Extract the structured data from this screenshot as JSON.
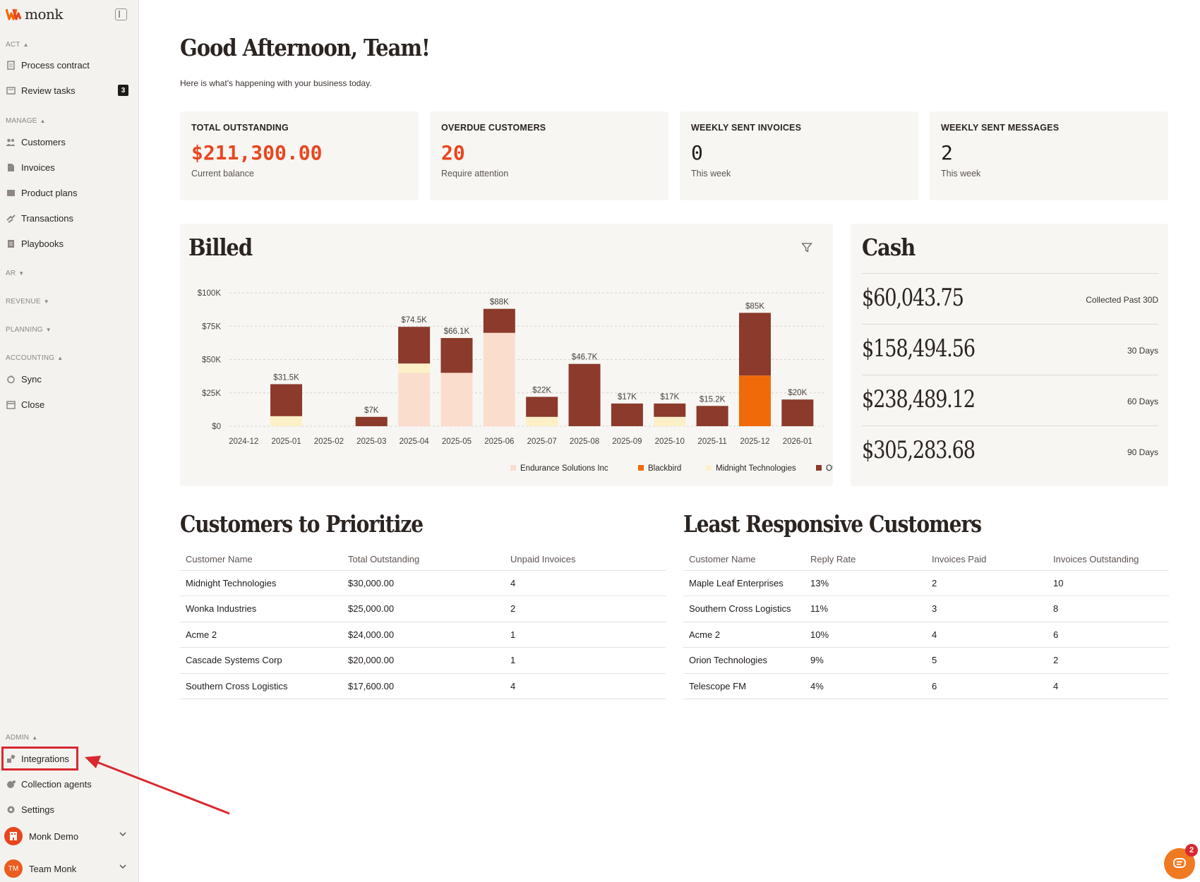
{
  "app": {
    "name": "monk"
  },
  "sidebar": {
    "act_label": "ACT",
    "act_items": [
      {
        "label": "Process contract",
        "icon": "contract-icon"
      },
      {
        "label": "Review tasks",
        "icon": "tasks-icon",
        "badge": "3"
      }
    ],
    "manage_label": "MANAGE",
    "manage_items": [
      {
        "label": "Customers",
        "icon": "users-icon"
      },
      {
        "label": "Invoices",
        "icon": "invoice-icon"
      },
      {
        "label": "Product plans",
        "icon": "plans-icon"
      },
      {
        "label": "Transactions",
        "icon": "transactions-icon"
      },
      {
        "label": "Playbooks",
        "icon": "playbooks-icon"
      }
    ],
    "ar_label": "AR",
    "revenue_label": "REVENUE",
    "planning_label": "PLANNING",
    "accounting_label": "ACCOUNTING",
    "accounting_items": [
      {
        "label": "Sync",
        "icon": "sync-icon"
      },
      {
        "label": "Close",
        "icon": "calendar-icon"
      }
    ],
    "admin_label": "ADMIN",
    "admin_items": [
      {
        "label": "Integrations",
        "icon": "integrations-icon"
      },
      {
        "label": "Collection agents",
        "icon": "agents-icon"
      },
      {
        "label": "Settings",
        "icon": "gear-icon"
      }
    ],
    "org": {
      "name": "Monk Demo"
    },
    "user": {
      "name": "Team Monk",
      "initials": "TM"
    }
  },
  "header": {
    "greeting": "Good Afternoon, Team!",
    "subtitle": "Here is what's happening with your business today."
  },
  "kpis": [
    {
      "title": "TOTAL OUTSTANDING",
      "value": "$211,300.00",
      "sub": "Current balance",
      "accent": "#e8461f"
    },
    {
      "title": "OVERDUE CUSTOMERS",
      "value": "20",
      "sub": "Require attention",
      "accent": "#e8461f"
    },
    {
      "title": "WEEKLY SENT INVOICES",
      "value": "0",
      "sub": "This week"
    },
    {
      "title": "WEEKLY SENT MESSAGES",
      "value": "2",
      "sub": "This week"
    }
  ],
  "billed": {
    "title": "Billed"
  },
  "chart_data": {
    "type": "bar",
    "stacked": true,
    "categories": [
      "2024-12",
      "2025-01",
      "2025-02",
      "2025-03",
      "2025-04",
      "2025-05",
      "2025-06",
      "2025-07",
      "2025-08",
      "2025-09",
      "2025-10",
      "2025-11",
      "2025-12",
      "2026-01"
    ],
    "totals_labels": [
      "",
      "$31.5K",
      "",
      "$7K",
      "$74.5K",
      "$66.1K",
      "$88K",
      "$22K",
      "$46.7K",
      "$17K",
      "$17K",
      "$15.2K",
      "$85K",
      "$20K"
    ],
    "series": [
      {
        "name": "Endurance Solutions Inc",
        "color": "#fbddcd",
        "values": [
          0,
          0,
          0,
          0,
          40000,
          40000,
          70000,
          0,
          0,
          0,
          0,
          0,
          0,
          0
        ]
      },
      {
        "name": "Blackbird",
        "color": "#f06a0a",
        "values": [
          0,
          0,
          0,
          0,
          0,
          0,
          0,
          0,
          0,
          0,
          0,
          0,
          38000,
          0
        ]
      },
      {
        "name": "Midnight Technologies",
        "color": "#fdf0c7",
        "values": [
          0,
          7500,
          0,
          0,
          7000,
          0,
          0,
          7000,
          0,
          0,
          7000,
          0,
          0,
          0
        ]
      },
      {
        "name": "Other",
        "color": "#8b3a2b",
        "values": [
          0,
          24000,
          0,
          7000,
          27500,
          26100,
          18000,
          15000,
          46700,
          17000,
          10000,
          15200,
          47000,
          20000
        ]
      }
    ],
    "ylim": [
      0,
      100000
    ],
    "yticks": [
      "$0",
      "$25K",
      "$50K",
      "$75K",
      "$100K"
    ],
    "ytick_values": [
      0,
      25000,
      50000,
      75000,
      100000
    ],
    "grid": true,
    "legend": "bottom-right"
  },
  "cash": {
    "title": "Cash",
    "rows": [
      {
        "value": "$60,043.75",
        "label": "Collected Past 30D"
      },
      {
        "value": "$158,494.56",
        "label": "30 Days"
      },
      {
        "value": "$238,489.12",
        "label": "60 Days"
      },
      {
        "value": "$305,283.68",
        "label": "90 Days"
      }
    ]
  },
  "prioritize": {
    "title": "Customers to Prioritize",
    "columns": [
      "Customer Name",
      "Total Outstanding",
      "Unpaid Invoices"
    ],
    "rows": [
      [
        "Midnight Technologies",
        "$30,000.00",
        "4"
      ],
      [
        "Wonka Industries",
        "$25,000.00",
        "2"
      ],
      [
        "Acme 2",
        "$24,000.00",
        "1"
      ],
      [
        "Cascade Systems Corp",
        "$20,000.00",
        "1"
      ],
      [
        "Southern Cross Logistics",
        "$17,600.00",
        "4"
      ]
    ]
  },
  "least_responsive": {
    "title": "Least Responsive Customers",
    "columns": [
      "Customer Name",
      "Reply Rate",
      "Invoices Paid",
      "Invoices Outstanding"
    ],
    "rows": [
      [
        "Maple Leaf Enterprises",
        "13%",
        "2",
        "10"
      ],
      [
        "Southern Cross Logistics",
        "11%",
        "3",
        "8"
      ],
      [
        "Acme 2",
        "10%",
        "4",
        "6"
      ],
      [
        "Orion Technologies",
        "9%",
        "5",
        "2"
      ],
      [
        "Telescope FM",
        "4%",
        "6",
        "4"
      ]
    ]
  },
  "chat": {
    "badge": "2"
  },
  "colors": {
    "accent": "#e8461f",
    "brand": "#f06a0a",
    "highlight": "#d9282f"
  }
}
